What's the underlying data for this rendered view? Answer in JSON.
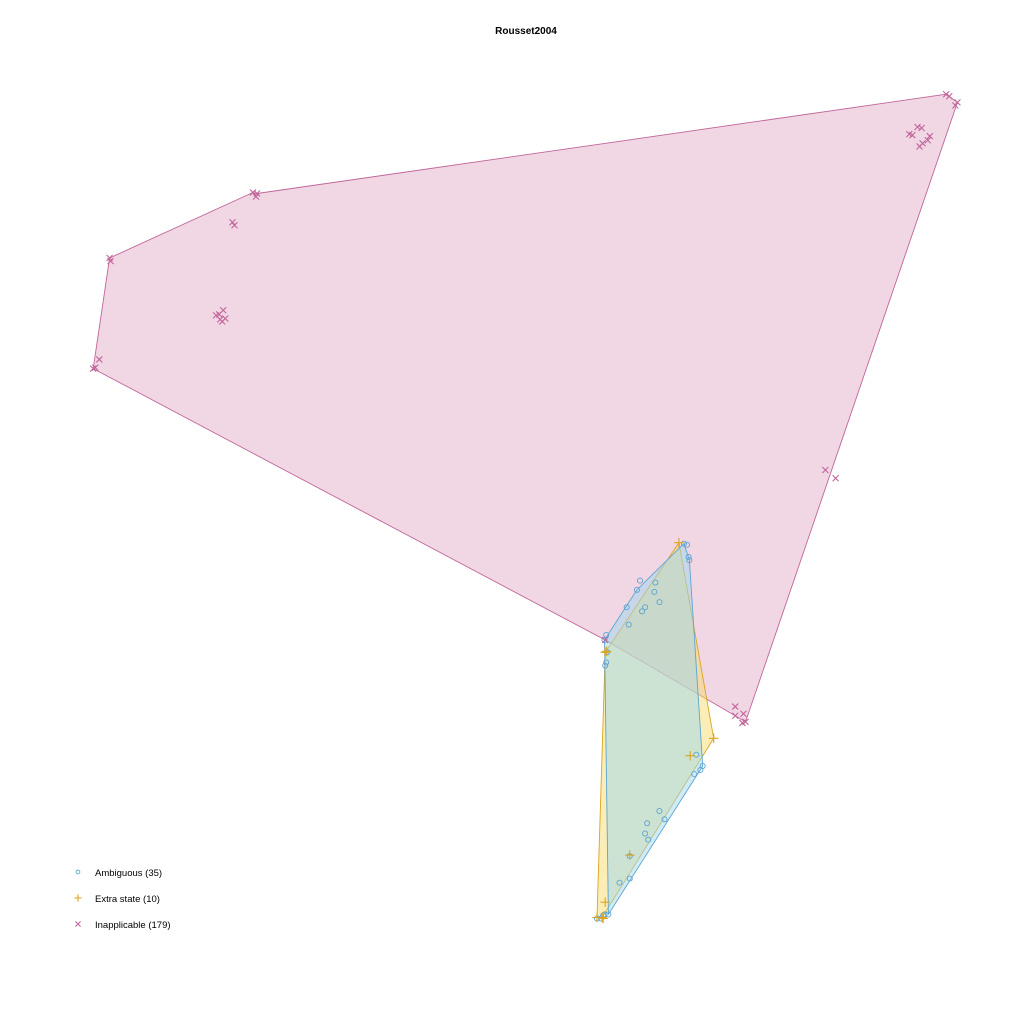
{
  "chart_data": {
    "type": "scatter",
    "title": "Rousset2004",
    "xlabel": "",
    "ylabel": "",
    "axes_shown": false,
    "grid": false,
    "xlim": [
      0,
      1
    ],
    "ylim": [
      0,
      1
    ],
    "legend_position": "bottom-left",
    "series": [
      {
        "name": "Ambiguous (35)",
        "marker": "circle",
        "color": "#5DA5D0",
        "fill": "#9ED8EE",
        "hull": [
          [
            0.6679,
            0.469
          ],
          [
            0.6732,
            0.453
          ],
          [
            0.6862,
            0.252
          ],
          [
            0.5941,
            0.107
          ],
          [
            0.5903,
            0.375
          ],
          [
            0.622,
            0.424
          ]
        ],
        "points": [
          [
            0.6679,
            0.469
          ],
          [
            0.671,
            0.468
          ],
          [
            0.6725,
            0.456
          ],
          [
            0.6732,
            0.453
          ],
          [
            0.625,
            0.433
          ],
          [
            0.622,
            0.424
          ],
          [
            0.612,
            0.407
          ],
          [
            0.64,
            0.431
          ],
          [
            0.639,
            0.422
          ],
          [
            0.644,
            0.412
          ],
          [
            0.63,
            0.407
          ],
          [
            0.627,
            0.403
          ],
          [
            0.614,
            0.39
          ],
          [
            0.592,
            0.38
          ],
          [
            0.5903,
            0.375
          ],
          [
            0.593,
            0.363
          ],
          [
            0.592,
            0.353
          ],
          [
            0.591,
            0.35
          ],
          [
            0.68,
            0.263
          ],
          [
            0.6862,
            0.252
          ],
          [
            0.684,
            0.248
          ],
          [
            0.644,
            0.208
          ],
          [
            0.649,
            0.2
          ],
          [
            0.632,
            0.196
          ],
          [
            0.63,
            0.186
          ],
          [
            0.633,
            0.18
          ],
          [
            0.615,
            0.164
          ],
          [
            0.605,
            0.138
          ],
          [
            0.615,
            0.142
          ],
          [
            0.5941,
            0.107
          ],
          [
            0.589,
            0.106
          ],
          [
            0.587,
            0.103
          ],
          [
            0.583,
            0.103
          ],
          [
            0.5905,
            0.107
          ],
          [
            0.678,
            0.244
          ]
        ]
      },
      {
        "name": "Extra state (10)",
        "marker": "plus",
        "color": "#DAA520",
        "fill": "#F5DC6E",
        "hull": [
          [
            0.663,
            0.47
          ],
          [
            0.697,
            0.279
          ],
          [
            0.588,
            0.104
          ],
          [
            0.583,
            0.104
          ],
          [
            0.591,
            0.363
          ]
        ],
        "points": [
          [
            0.663,
            0.47
          ],
          [
            0.697,
            0.279
          ],
          [
            0.674,
            0.262
          ],
          [
            0.615,
            0.165
          ],
          [
            0.591,
            0.119
          ],
          [
            0.588,
            0.104
          ],
          [
            0.583,
            0.104
          ],
          [
            0.591,
            0.363
          ],
          [
            0.5925,
            0.364
          ],
          [
            0.589,
            0.103
          ]
        ]
      },
      {
        "name": "Inapplicable (179)",
        "marker": "x",
        "color": "#C0669A",
        "fill": "#E5B5CE",
        "hull": [
          [
            0.924,
            0.908
          ],
          [
            0.935,
            0.9
          ],
          [
            0.728,
            0.295
          ],
          [
            0.718,
            0.301
          ],
          [
            0.591,
            0.375
          ],
          [
            0.091,
            0.64
          ],
          [
            0.107,
            0.748
          ],
          [
            0.247,
            0.812
          ],
          [
            0.251,
            0.811
          ]
        ],
        "points": [
          [
            0.924,
            0.908
          ],
          [
            0.927,
            0.906
          ],
          [
            0.935,
            0.9
          ],
          [
            0.933,
            0.897
          ],
          [
            0.896,
            0.876
          ],
          [
            0.9,
            0.875
          ],
          [
            0.888,
            0.869
          ],
          [
            0.891,
            0.868
          ],
          [
            0.908,
            0.867
          ],
          [
            0.906,
            0.863
          ],
          [
            0.901,
            0.86
          ],
          [
            0.898,
            0.857
          ],
          [
            0.247,
            0.812
          ],
          [
            0.251,
            0.811
          ],
          [
            0.25,
            0.808
          ],
          [
            0.227,
            0.783
          ],
          [
            0.229,
            0.78
          ],
          [
            0.107,
            0.748
          ],
          [
            0.108,
            0.745
          ],
          [
            0.218,
            0.697
          ],
          [
            0.214,
            0.693
          ],
          [
            0.211,
            0.692
          ],
          [
            0.22,
            0.689
          ],
          [
            0.215,
            0.688
          ],
          [
            0.217,
            0.686
          ],
          [
            0.097,
            0.649
          ],
          [
            0.093,
            0.641
          ],
          [
            0.091,
            0.64
          ],
          [
            0.806,
            0.541
          ],
          [
            0.816,
            0.533
          ],
          [
            0.718,
            0.31
          ],
          [
            0.726,
            0.303
          ],
          [
            0.718,
            0.301
          ],
          [
            0.728,
            0.295
          ],
          [
            0.725,
            0.294
          ],
          [
            0.591,
            0.375
          ]
        ]
      }
    ]
  }
}
